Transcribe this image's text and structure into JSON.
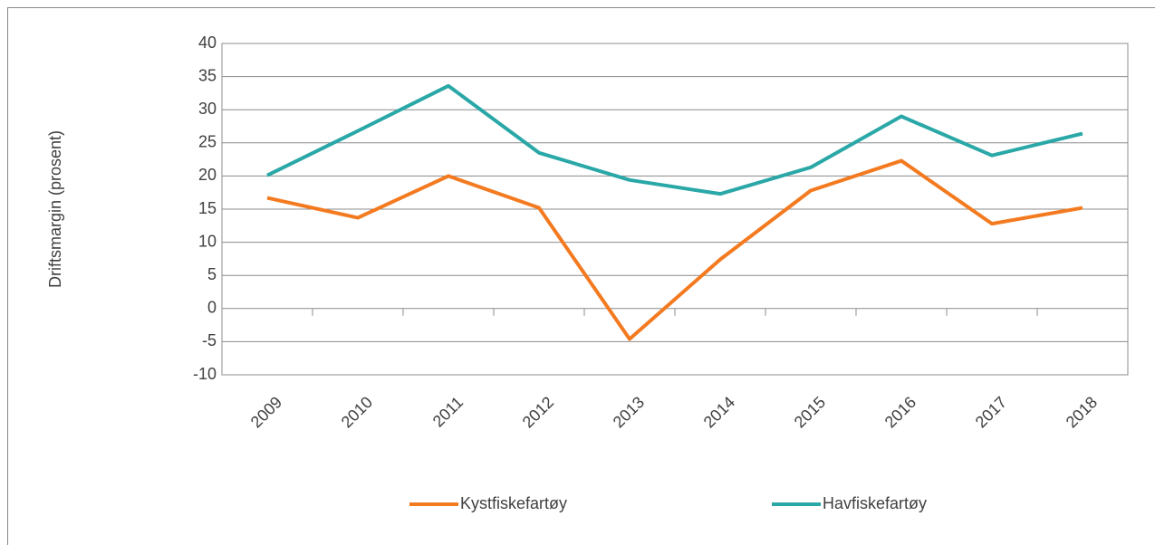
{
  "chart_data": {
    "type": "line",
    "y_label": "Driftsmargin (prosent)",
    "categories": [
      "2009",
      "2010",
      "2011",
      "2012",
      "2013",
      "2014",
      "2015",
      "2016",
      "2017",
      "2018"
    ],
    "series": [
      {
        "name": "Kystfiskefartøy",
        "color": "#f47a20",
        "values": [
          16.7,
          13.7,
          20.0,
          15.2,
          -4.6,
          7.4,
          17.8,
          22.3,
          12.8,
          15.2
        ]
      },
      {
        "name": "Havfiskefartøy",
        "color": "#2aa7a7",
        "values": [
          20.1,
          26.8,
          33.6,
          23.5,
          19.4,
          17.3,
          21.3,
          29.0,
          23.1,
          26.4
        ]
      }
    ],
    "ylim": [
      -10,
      40
    ],
    "yticks": [
      -10,
      -5,
      0,
      5,
      10,
      15,
      20,
      25,
      30,
      35,
      40
    ],
    "grid": true,
    "legend": "bottom"
  }
}
